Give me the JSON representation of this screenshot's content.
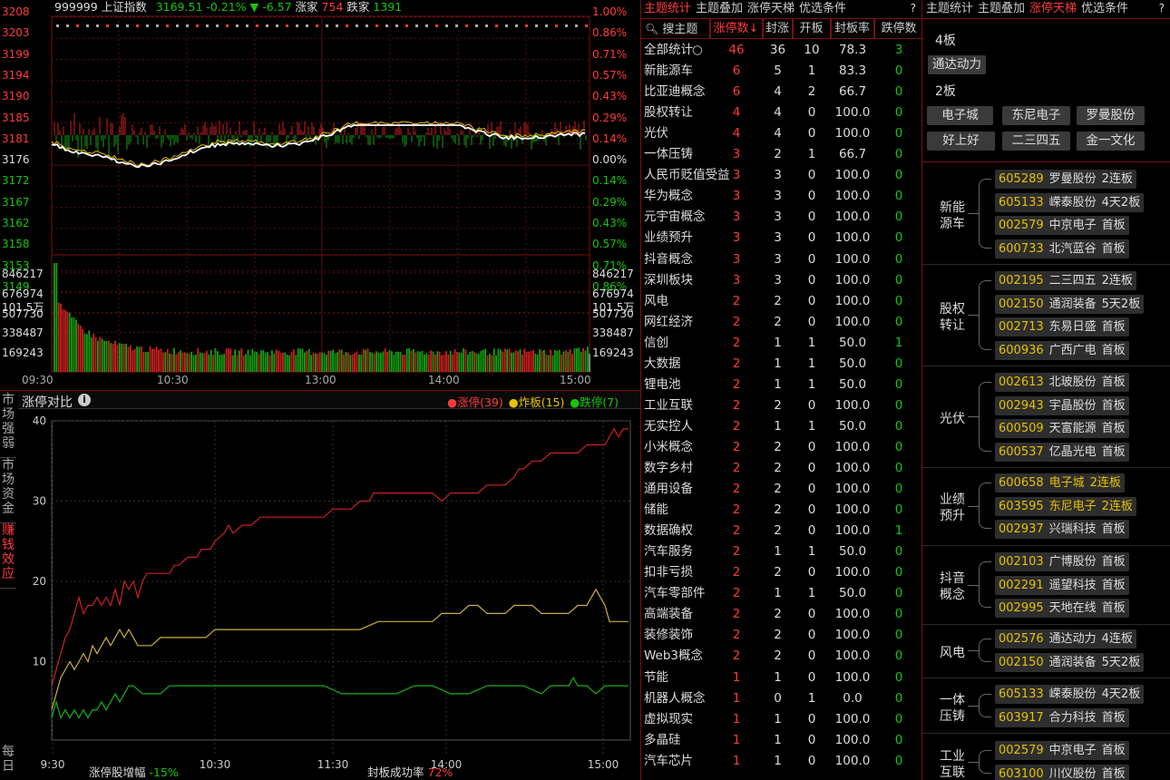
{
  "index": {
    "code": "999999",
    "name": "上证指数",
    "price": "3169.51",
    "pct": "-0.21%",
    "arrow": "▼",
    "chg": "-6.57",
    "up_label": "涨家",
    "up_count": "754",
    "down_label": "跌家",
    "down_count": "1391"
  },
  "price_ticks_left": [
    "3208",
    "3203",
    "3199",
    "3194",
    "3190",
    "3185",
    "3181",
    "3176",
    "3172",
    "3167",
    "3162",
    "3158",
    "3153",
    "3149",
    "101.5万"
  ],
  "price_ticks_right": [
    "1.00%",
    "0.86%",
    "0.71%",
    "0.57%",
    "0.43%",
    "0.29%",
    "0.14%",
    "0.00%",
    "0.14%",
    "0.29%",
    "0.43%",
    "0.57%",
    "0.71%",
    "0.86%",
    "101.5万"
  ],
  "vol_ticks_left": [
    "846217",
    "676974",
    "507730",
    "338487",
    "169243"
  ],
  "vol_ticks_right": [
    "846217",
    "676974",
    "507730",
    "338487",
    "169243"
  ],
  "time_labels": [
    "09:30",
    "10:30",
    "13:00",
    "14:00",
    "15:00"
  ],
  "compare": {
    "title": "涨停对比",
    "legend": [
      {
        "label": "涨停(39)",
        "color": "#ff3b3b"
      },
      {
        "label": "炸板(15)",
        "color": "#e6c200"
      },
      {
        "label": "跌停(7)",
        "color": "#16c60c"
      }
    ],
    "yticks": [
      "40",
      "30",
      "20",
      "10"
    ],
    "xticks": [
      "9:30",
      "10:30",
      "11:30",
      "14:00",
      "15:00"
    ],
    "footer_left_label": "涨停股增幅",
    "footer_left_val": "-15%",
    "footer_right_label": "封板成功率",
    "footer_right_val": "72%"
  },
  "side_tabs": [
    "市场强弱",
    "市场资金",
    "赚钱效应",
    "每日"
  ],
  "mid": {
    "tabs": [
      "主题统计",
      "主题叠加",
      "涨停天梯",
      "优选条件"
    ],
    "help": "?",
    "headers": [
      "搜主题",
      "涨停数↓",
      "封涨",
      "开板",
      "封板率",
      "跌停数"
    ],
    "rows": [
      [
        "全部统计",
        "46",
        "36",
        "10",
        "78.3",
        "3"
      ],
      [
        "新能源车",
        "6",
        "5",
        "1",
        "83.3",
        "0"
      ],
      [
        "比亚迪概念",
        "6",
        "4",
        "2",
        "66.7",
        "0"
      ],
      [
        "股权转让",
        "4",
        "4",
        "0",
        "100.0",
        "0"
      ],
      [
        "光伏",
        "4",
        "4",
        "0",
        "100.0",
        "0"
      ],
      [
        "一体压铸",
        "3",
        "2",
        "1",
        "66.7",
        "0"
      ],
      [
        "人民币贬值受益",
        "3",
        "3",
        "0",
        "100.0",
        "0"
      ],
      [
        "华为概念",
        "3",
        "3",
        "0",
        "100.0",
        "0"
      ],
      [
        "元宇宙概念",
        "3",
        "3",
        "0",
        "100.0",
        "0"
      ],
      [
        "业绩预升",
        "3",
        "3",
        "0",
        "100.0",
        "0"
      ],
      [
        "抖音概念",
        "3",
        "3",
        "0",
        "100.0",
        "0"
      ],
      [
        "深圳板块",
        "3",
        "3",
        "0",
        "100.0",
        "0"
      ],
      [
        "风电",
        "2",
        "2",
        "0",
        "100.0",
        "0"
      ],
      [
        "网红经济",
        "2",
        "2",
        "0",
        "100.0",
        "0"
      ],
      [
        "信创",
        "2",
        "1",
        "1",
        "50.0",
        "1"
      ],
      [
        "大数据",
        "2",
        "1",
        "1",
        "50.0",
        "0"
      ],
      [
        "锂电池",
        "2",
        "1",
        "1",
        "50.0",
        "0"
      ],
      [
        "工业互联",
        "2",
        "2",
        "0",
        "100.0",
        "0"
      ],
      [
        "无实控人",
        "2",
        "1",
        "1",
        "50.0",
        "0"
      ],
      [
        "小米概念",
        "2",
        "2",
        "0",
        "100.0",
        "0"
      ],
      [
        "数字乡村",
        "2",
        "2",
        "0",
        "100.0",
        "0"
      ],
      [
        "通用设备",
        "2",
        "2",
        "0",
        "100.0",
        "0"
      ],
      [
        "储能",
        "2",
        "2",
        "0",
        "100.0",
        "0"
      ],
      [
        "数据确权",
        "2",
        "2",
        "0",
        "100.0",
        "1"
      ],
      [
        "汽车服务",
        "2",
        "1",
        "1",
        "50.0",
        "0"
      ],
      [
        "扣非亏损",
        "2",
        "2",
        "0",
        "100.0",
        "0"
      ],
      [
        "汽车零部件",
        "2",
        "1",
        "1",
        "50.0",
        "0"
      ],
      [
        "高端装备",
        "2",
        "2",
        "0",
        "100.0",
        "0"
      ],
      [
        "装修装饰",
        "2",
        "2",
        "0",
        "100.0",
        "0"
      ],
      [
        "Web3概念",
        "2",
        "2",
        "0",
        "100.0",
        "0"
      ],
      [
        "节能",
        "1",
        "1",
        "0",
        "100.0",
        "0"
      ],
      [
        "机器人概念",
        "1",
        "0",
        "1",
        "0.0",
        "0"
      ],
      [
        "虚拟现实",
        "1",
        "1",
        "0",
        "100.0",
        "0"
      ],
      [
        "多晶硅",
        "1",
        "1",
        "0",
        "100.0",
        "0"
      ],
      [
        "汽车芯片",
        "1",
        "1",
        "0",
        "100.0",
        "0"
      ]
    ]
  },
  "right": {
    "tabs": [
      "主题统计",
      "主题叠加",
      "涨停天梯",
      "优选条件"
    ],
    "help": "?",
    "board4_label": "4板",
    "board4": [
      "通达动力"
    ],
    "board2_label": "2板",
    "board2": [
      "电子城",
      "东尼电子",
      "罗曼股份",
      "好上好",
      "二三四五",
      "金一文化"
    ],
    "groups": [
      {
        "name": "新能源车",
        "stocks": [
          [
            "605289",
            "罗曼股份",
            "2连板"
          ],
          [
            "605133",
            "嵘泰股份",
            "4天2板"
          ],
          [
            "002579",
            "中京电子",
            "首板"
          ],
          [
            "600733",
            "北汽蓝谷",
            "首板"
          ]
        ]
      },
      {
        "name": "股权转让",
        "stocks": [
          [
            "002195",
            "二三四五",
            "2连板"
          ],
          [
            "002150",
            "通润装备",
            "5天2板"
          ],
          [
            "002713",
            "东易日盛",
            "首板"
          ],
          [
            "600936",
            "广西广电",
            "首板"
          ]
        ]
      },
      {
        "name": "光伏",
        "stocks": [
          [
            "002613",
            "北玻股份",
            "首板"
          ],
          [
            "002943",
            "宇晶股份",
            "首板"
          ],
          [
            "600509",
            "天富能源",
            "首板"
          ],
          [
            "600537",
            "亿晶光电",
            "首板"
          ]
        ]
      },
      {
        "name": "业绩预升",
        "stocks": [
          [
            "600658",
            "电子城",
            "2连板"
          ],
          [
            "603595",
            "东尼电子",
            "2连板"
          ],
          [
            "002937",
            "兴瑞科技",
            "首板"
          ]
        ]
      },
      {
        "name": "抖音概念",
        "stocks": [
          [
            "002103",
            "广博股份",
            "首板"
          ],
          [
            "002291",
            "遥望科技",
            "首板"
          ],
          [
            "002995",
            "天地在线",
            "首板"
          ]
        ]
      },
      {
        "name": "风电",
        "stocks": [
          [
            "002576",
            "通达动力",
            "4连板"
          ],
          [
            "002150",
            "通润装备",
            "5天2板"
          ]
        ]
      },
      {
        "name": "一体压铸",
        "stocks": [
          [
            "605133",
            "嵘泰股份",
            "4天2板"
          ],
          [
            "603917",
            "合力科技",
            "首板"
          ]
        ]
      },
      {
        "name": "工业互联",
        "stocks": [
          [
            "002579",
            "中京电子",
            "首板"
          ],
          [
            "603100",
            "川仪股份",
            "首板"
          ]
        ]
      }
    ]
  }
}
